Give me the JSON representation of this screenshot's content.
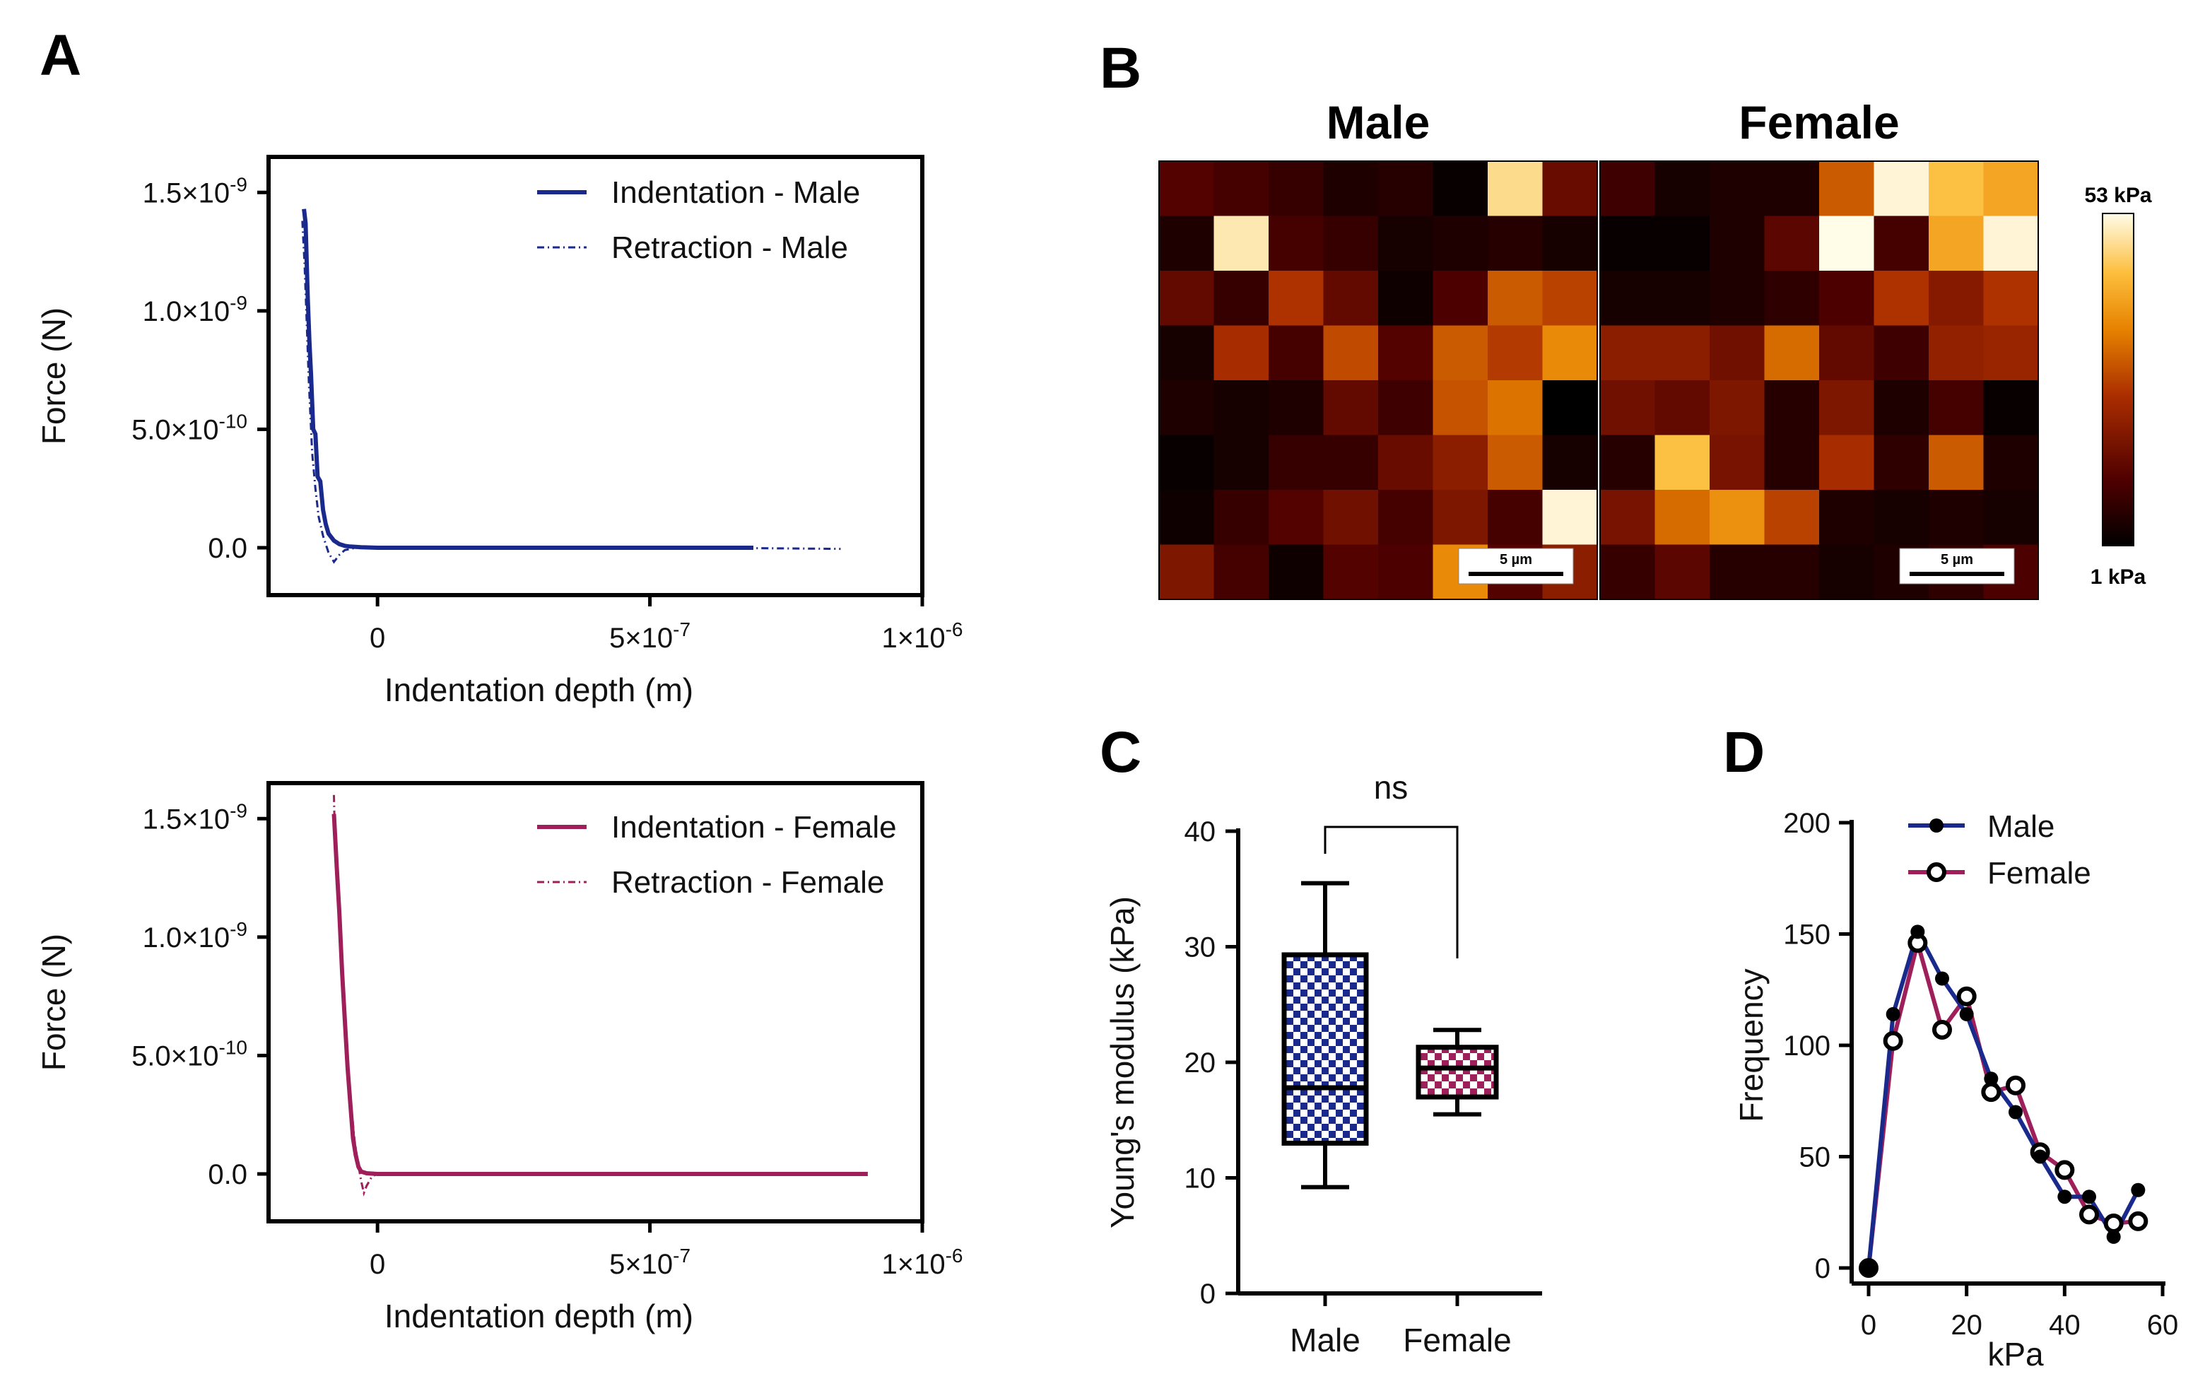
{
  "chart_data": [
    {
      "panel": "A",
      "type": "line",
      "xlabel": "Indentation depth (m)",
      "ylabel": "Force (N)",
      "xlim": [
        -2e-07,
        1e-06
      ],
      "ylim": [
        -2e-10,
        1.65e-09
      ],
      "x_ticks": [
        {
          "value": 0,
          "label": "0"
        },
        {
          "value": 5e-07,
          "label": "5×10",
          "exp": "-7"
        },
        {
          "value": 1e-06,
          "label": "1×10",
          "exp": "-6"
        }
      ],
      "y_ticks": [
        {
          "value": 0,
          "label": "0.0"
        },
        {
          "value": 5e-10,
          "label": "5.0×10",
          "exp": "-10"
        },
        {
          "value": 1e-09,
          "label": "1.0×10",
          "exp": "-9"
        },
        {
          "value": 1.5e-09,
          "label": "1.5×10",
          "exp": "-9"
        }
      ],
      "series": [
        {
          "name": "Indentation - Male",
          "style": "solid",
          "color": "#1a2a8c",
          "x": [
            -1.35e-07,
            -1.32e-07,
            -1.28e-07,
            -1.25e-07,
            -1.22e-07,
            -1.18e-07,
            -1.14e-07,
            -1.1e-07,
            -1.05e-07,
            -1e-07,
            -9.5e-08,
            -9e-08,
            -8e-08,
            -7e-08,
            -6e-08,
            -5e-08,
            -3e-08,
            0,
            1e-07,
            2e-07,
            3e-07,
            4e-07,
            5e-07,
            6e-07,
            6.9e-07
          ],
          "y": [
            1.43e-09,
            1.37e-09,
            1.05e-09,
            8.7e-10,
            7.3e-10,
            5e-10,
            4.8e-10,
            3e-10,
            2.8e-10,
            1.6e-10,
            1e-10,
            6e-11,
            3e-11,
            1.5e-11,
            8e-12,
            5e-12,
            2e-12,
            0,
            0,
            0,
            0,
            0,
            0,
            0,
            0
          ]
        },
        {
          "name": "Retraction - Male",
          "style": "dashdot",
          "color": "#1a2a8c",
          "x": [
            -1.38e-07,
            -1.34e-07,
            -1.3e-07,
            -1.26e-07,
            -1.2e-07,
            -1.14e-07,
            -1.08e-07,
            -1e-07,
            -9e-08,
            -8e-08,
            -7e-08,
            -6e-08,
            -4e-08,
            0,
            2e-07,
            4e-07,
            6e-07,
            8.5e-07
          ],
          "y": [
            1.38e-09,
            1.2e-09,
            9.5e-10,
            7e-10,
            4e-10,
            2.5e-10,
            1.3e-10,
            5e-11,
            -2e-11,
            -6e-11,
            -3e-11,
            -1e-11,
            0,
            0,
            0,
            0,
            0,
            -5e-12
          ]
        }
      ]
    },
    {
      "panel": "A",
      "type": "line",
      "xlabel": "Indentation depth (m)",
      "ylabel": "Force (N)",
      "xlim": [
        -2e-07,
        1e-06
      ],
      "ylim": [
        -2e-10,
        1.65e-09
      ],
      "x_ticks": [
        {
          "value": 0,
          "label": "0"
        },
        {
          "value": 5e-07,
          "label": "5×10",
          "exp": "-7"
        },
        {
          "value": 1e-06,
          "label": "1×10",
          "exp": "-6"
        }
      ],
      "y_ticks": [
        {
          "value": 0,
          "label": "0.0"
        },
        {
          "value": 5e-10,
          "label": "5.0×10",
          "exp": "-10"
        },
        {
          "value": 1e-09,
          "label": "1.0×10",
          "exp": "-9"
        },
        {
          "value": 1.5e-09,
          "label": "1.5×10",
          "exp": "-9"
        }
      ],
      "series": [
        {
          "name": "Indentation - Female",
          "style": "solid",
          "color": "#9e1f5a",
          "x": [
            -8e-08,
            -7.5e-08,
            -7e-08,
            -6.5e-08,
            -6e-08,
            -5.5e-08,
            -5e-08,
            -4.5e-08,
            -4e-08,
            -3.5e-08,
            -3e-08,
            -2e-08,
            0,
            2e-07,
            4e-07,
            6e-07,
            8e-07,
            9e-07
          ],
          "y": [
            1.52e-09,
            1.3e-09,
            1.1e-09,
            8.5e-10,
            6.5e-10,
            4.5e-10,
            3e-10,
            1.5e-10,
            8e-11,
            3e-11,
            1e-11,
            3e-12,
            0,
            0,
            0,
            0,
            0,
            0
          ]
        },
        {
          "name": "Retraction - Female",
          "style": "dashdot",
          "color": "#9e1f5a",
          "x": [
            -8e-08,
            -7.8e-08,
            -7.2e-08,
            -6.6e-08,
            -6e-08,
            -5.4e-08,
            -4.8e-08,
            -4.2e-08,
            -3.6e-08,
            -3e-08,
            -2.5e-08,
            -2e-08,
            -1e-08,
            0,
            2e-07,
            5e-07,
            9e-07
          ],
          "y": [
            1.6e-09,
            1.4e-09,
            1.15e-09,
            9e-10,
            6.5e-10,
            4.5e-10,
            2.8e-10,
            1.4e-10,
            5e-11,
            -3e-11,
            -8e-11,
            -5e-11,
            -1e-11,
            0,
            0,
            0,
            0
          ]
        }
      ]
    },
    {
      "panel": "B",
      "type": "heatmap",
      "titles": [
        "Male",
        "Female"
      ],
      "colorbar": {
        "min_label": "1 kPa",
        "max_label": "53 kPa",
        "min": 1,
        "max": 53
      },
      "scale_bar": "5 µm",
      "grids": [
        [
          [
            12,
            10,
            8,
            5,
            6,
            2,
            48,
            15
          ],
          [
            5,
            50,
            10,
            8,
            4,
            5,
            6,
            4
          ],
          [
            14,
            8,
            25,
            14,
            3,
            11,
            30,
            27
          ],
          [
            4,
            24,
            10,
            28,
            12,
            30,
            26,
            36
          ],
          [
            5,
            4,
            5,
            14,
            9,
            29,
            33,
            1
          ],
          [
            2,
            4,
            8,
            8,
            15,
            20,
            30,
            4
          ],
          [
            3,
            8,
            12,
            16,
            10,
            18,
            10,
            52
          ],
          [
            18,
            10,
            3,
            12,
            11,
            36,
            12,
            20
          ]
        ],
        [
          [
            9,
            4,
            5,
            5,
            30,
            52,
            44,
            40
          ],
          [
            2,
            2,
            5,
            13,
            53,
            10,
            40,
            52
          ],
          [
            4,
            4,
            5,
            7,
            11,
            25,
            19,
            25
          ],
          [
            20,
            20,
            16,
            32,
            14,
            9,
            21,
            22
          ],
          [
            16,
            14,
            18,
            6,
            18,
            5,
            10,
            2
          ],
          [
            6,
            44,
            17,
            6,
            24,
            7,
            30,
            5
          ],
          [
            17,
            32,
            37,
            27,
            5,
            4,
            5,
            4
          ],
          [
            8,
            13,
            6,
            6,
            4,
            5,
            7,
            11
          ]
        ]
      ]
    },
    {
      "panel": "C",
      "type": "box",
      "ylabel": "Young's modulus (kPa)",
      "categories": [
        "Male",
        "Female"
      ],
      "ylim": [
        0,
        40
      ],
      "y_ticks": [
        0,
        10,
        20,
        30,
        40
      ],
      "boxes": [
        {
          "name": "Male",
          "min": 9.2,
          "q1": 13,
          "median": 17.8,
          "q3": 29.3,
          "max": 35.5,
          "color": "#1a2a8c"
        },
        {
          "name": "Female",
          "min": 15.5,
          "q1": 17,
          "median": 19.5,
          "q3": 21.3,
          "max": 22.8,
          "color": "#9e1f5a"
        }
      ],
      "annotation": "ns"
    },
    {
      "panel": "D",
      "type": "line",
      "xlabel": "kPa",
      "ylabel": "Frequency",
      "xlim": [
        0,
        60
      ],
      "ylim": [
        0,
        200
      ],
      "x_ticks": [
        0,
        20,
        40,
        60
      ],
      "y_ticks": [
        0,
        50,
        100,
        150,
        200
      ],
      "series": [
        {
          "name": "Male",
          "color": "#1a2a8c",
          "marker": "filled",
          "x": [
            0,
            5,
            10,
            15,
            20,
            25,
            30,
            35,
            40,
            45,
            50,
            55
          ],
          "y": [
            0,
            114,
            151,
            130,
            114,
            85,
            70,
            50,
            32,
            32,
            14,
            35
          ]
        },
        {
          "name": "Female",
          "color": "#9e1f5a",
          "marker": "open",
          "x": [
            0,
            5,
            10,
            15,
            20,
            25,
            30,
            35,
            40,
            45,
            50,
            55
          ],
          "y": [
            0,
            102,
            146,
            107,
            122,
            79,
            82,
            52,
            44,
            24,
            20,
            21
          ]
        }
      ]
    }
  ]
}
